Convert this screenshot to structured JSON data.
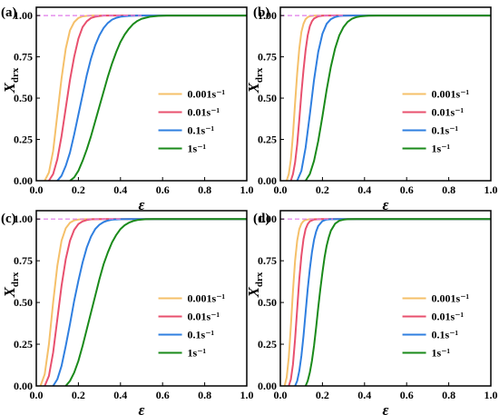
{
  "chart_data": [
    {
      "type": "line",
      "panel_label": "(a)",
      "xlabel": "ε",
      "ylabel": "X",
      "ylabel_subscript": "drx",
      "xlim": [
        0,
        1.0
      ],
      "ylim": [
        0,
        1.05
      ],
      "x_ticks": [
        "0.0",
        "0.2",
        "0.4",
        "0.6",
        "0.8",
        "1.0"
      ],
      "y_ticks": [
        "0.00",
        "0.25",
        "0.50",
        "0.75",
        "1.00"
      ],
      "reference_line": {
        "y": 1.0,
        "x_range": [
          0,
          0.5
        ],
        "style": "dashed",
        "color": "#e07ae8"
      },
      "legend_position": "center-right",
      "series": [
        {
          "name": "0.001s⁻¹",
          "color": "#f5c06a",
          "x": [
            0.04,
            0.06,
            0.08,
            0.1,
            0.12,
            0.14,
            0.16,
            0.18,
            0.2,
            0.22,
            0.24,
            0.26,
            0.28,
            0.3,
            1.0
          ],
          "values": [
            0.0,
            0.05,
            0.18,
            0.4,
            0.62,
            0.8,
            0.91,
            0.96,
            0.985,
            0.995,
            0.998,
            1.0,
            1.0,
            1.0,
            1.0
          ]
        },
        {
          "name": "0.01s⁻¹",
          "color": "#e8506e",
          "x": [
            0.06,
            0.08,
            0.1,
            0.12,
            0.14,
            0.16,
            0.18,
            0.2,
            0.22,
            0.24,
            0.26,
            0.28,
            0.3,
            0.32,
            0.36,
            1.0
          ],
          "values": [
            0.0,
            0.04,
            0.13,
            0.27,
            0.44,
            0.61,
            0.75,
            0.86,
            0.93,
            0.965,
            0.985,
            0.993,
            0.997,
            1.0,
            1.0,
            1.0
          ]
        },
        {
          "name": "0.1s⁻¹",
          "color": "#2f7fe0",
          "x": [
            0.1,
            0.12,
            0.14,
            0.16,
            0.18,
            0.2,
            0.22,
            0.24,
            0.26,
            0.28,
            0.3,
            0.32,
            0.34,
            0.36,
            0.38,
            0.4,
            0.44,
            0.48,
            1.0
          ],
          "values": [
            0.0,
            0.03,
            0.09,
            0.17,
            0.28,
            0.4,
            0.52,
            0.64,
            0.74,
            0.82,
            0.88,
            0.925,
            0.955,
            0.975,
            0.986,
            0.993,
            0.998,
            1.0,
            1.0
          ]
        },
        {
          "name": "1s⁻¹",
          "color": "#1a8a1a",
          "x": [
            0.16,
            0.18,
            0.2,
            0.22,
            0.24,
            0.26,
            0.28,
            0.3,
            0.32,
            0.34,
            0.36,
            0.38,
            0.4,
            0.42,
            0.44,
            0.46,
            0.48,
            0.5,
            0.54,
            0.58,
            0.62,
            1.0
          ],
          "values": [
            0.0,
            0.02,
            0.06,
            0.12,
            0.19,
            0.27,
            0.36,
            0.45,
            0.54,
            0.63,
            0.71,
            0.78,
            0.84,
            0.885,
            0.92,
            0.948,
            0.967,
            0.98,
            0.993,
            0.998,
            1.0,
            1.0
          ]
        }
      ]
    },
    {
      "type": "line",
      "panel_label": "(b)",
      "xlabel": "ε",
      "ylabel": "X",
      "ylabel_subscript": "drx",
      "xlim": [
        0,
        1.0
      ],
      "ylim": [
        0,
        1.05
      ],
      "x_ticks": [
        "0.0",
        "0.2",
        "0.4",
        "0.6",
        "0.8",
        "1.0"
      ],
      "y_ticks": [
        "0.00",
        "0.25",
        "0.50",
        "0.75",
        "1.00"
      ],
      "reference_line": {
        "y": 1.0,
        "x_range": [
          0,
          0.3
        ],
        "style": "dashed",
        "color": "#e07ae8"
      },
      "legend_position": "center-right",
      "series": [
        {
          "name": "0.001s⁻¹",
          "color": "#f5c06a",
          "x": [
            0.03,
            0.04,
            0.05,
            0.06,
            0.07,
            0.08,
            0.09,
            0.1,
            0.11,
            0.12,
            0.13,
            0.14,
            0.16,
            0.18,
            1.0
          ],
          "values": [
            0.0,
            0.04,
            0.13,
            0.28,
            0.47,
            0.65,
            0.8,
            0.9,
            0.95,
            0.978,
            0.99,
            0.996,
            0.999,
            1.0,
            1.0
          ]
        },
        {
          "name": "0.01s⁻¹",
          "color": "#e8506e",
          "x": [
            0.05,
            0.06,
            0.07,
            0.08,
            0.09,
            0.1,
            0.11,
            0.12,
            0.13,
            0.14,
            0.15,
            0.16,
            0.18,
            0.2,
            0.22,
            1.0
          ],
          "values": [
            0.0,
            0.04,
            0.11,
            0.22,
            0.37,
            0.53,
            0.67,
            0.79,
            0.88,
            0.935,
            0.965,
            0.982,
            0.995,
            0.999,
            1.0,
            1.0
          ]
        },
        {
          "name": "0.1s⁻¹",
          "color": "#2f7fe0",
          "x": [
            0.08,
            0.1,
            0.12,
            0.14,
            0.16,
            0.18,
            0.2,
            0.22,
            0.24,
            0.26,
            0.28,
            0.3,
            0.34,
            1.0
          ],
          "values": [
            0.0,
            0.06,
            0.2,
            0.4,
            0.61,
            0.78,
            0.89,
            0.95,
            0.978,
            0.991,
            0.997,
            0.999,
            1.0,
            1.0
          ]
        },
        {
          "name": "1s⁻¹",
          "color": "#1a8a1a",
          "x": [
            0.12,
            0.14,
            0.16,
            0.18,
            0.2,
            0.22,
            0.24,
            0.26,
            0.28,
            0.3,
            0.32,
            0.34,
            0.36,
            0.38,
            0.42,
            0.46,
            1.0
          ],
          "values": [
            0.0,
            0.04,
            0.12,
            0.24,
            0.39,
            0.55,
            0.69,
            0.8,
            0.88,
            0.93,
            0.962,
            0.98,
            0.99,
            0.995,
            0.999,
            1.0,
            1.0
          ]
        }
      ]
    },
    {
      "type": "line",
      "panel_label": "(c)",
      "xlabel": "ε",
      "ylabel": "X",
      "ylabel_subscript": "drx",
      "xlim": [
        0,
        1.0
      ],
      "ylim": [
        0,
        1.05
      ],
      "x_ticks": [
        "0.0",
        "0.2",
        "0.4",
        "0.6",
        "0.8",
        "1.0"
      ],
      "y_ticks": [
        "0.00",
        "0.25",
        "0.50",
        "0.75",
        "1.00"
      ],
      "reference_line": {
        "y": 1.0,
        "x_range": [
          0,
          0.4
        ],
        "style": "dashed",
        "color": "#e07ae8"
      },
      "legend_position": "center-right",
      "series": [
        {
          "name": "0.001s⁻¹",
          "color": "#f5c06a",
          "x": [
            0.02,
            0.04,
            0.06,
            0.08,
            0.1,
            0.12,
            0.14,
            0.16,
            0.18,
            0.2,
            0.22,
            0.24,
            1.0
          ],
          "values": [
            0.0,
            0.07,
            0.25,
            0.5,
            0.72,
            0.87,
            0.945,
            0.978,
            0.992,
            0.997,
            0.999,
            1.0,
            1.0
          ]
        },
        {
          "name": "0.01s⁻¹",
          "color": "#e8506e",
          "x": [
            0.04,
            0.06,
            0.08,
            0.1,
            0.12,
            0.14,
            0.16,
            0.18,
            0.2,
            0.22,
            0.24,
            0.26,
            0.28,
            0.32,
            1.0
          ],
          "values": [
            0.0,
            0.06,
            0.2,
            0.4,
            0.6,
            0.76,
            0.87,
            0.935,
            0.97,
            0.986,
            0.994,
            0.998,
            0.999,
            1.0,
            1.0
          ]
        },
        {
          "name": "0.1s⁻¹",
          "color": "#2f7fe0",
          "x": [
            0.08,
            0.1,
            0.12,
            0.14,
            0.16,
            0.18,
            0.2,
            0.22,
            0.24,
            0.26,
            0.28,
            0.3,
            0.32,
            0.34,
            0.36,
            0.4,
            0.44,
            1.0
          ],
          "values": [
            0.0,
            0.04,
            0.12,
            0.24,
            0.37,
            0.51,
            0.63,
            0.74,
            0.83,
            0.895,
            0.94,
            0.966,
            0.982,
            0.991,
            0.996,
            0.999,
            1.0,
            1.0
          ]
        },
        {
          "name": "1s⁻¹",
          "color": "#1a8a1a",
          "x": [
            0.14,
            0.16,
            0.18,
            0.2,
            0.22,
            0.24,
            0.26,
            0.28,
            0.3,
            0.32,
            0.34,
            0.36,
            0.38,
            0.4,
            0.42,
            0.44,
            0.46,
            0.48,
            0.52,
            0.56,
            1.0
          ],
          "values": [
            0.0,
            0.03,
            0.08,
            0.15,
            0.24,
            0.34,
            0.44,
            0.54,
            0.64,
            0.73,
            0.8,
            0.86,
            0.905,
            0.94,
            0.963,
            0.978,
            0.988,
            0.994,
            0.999,
            1.0,
            1.0
          ]
        }
      ]
    },
    {
      "type": "line",
      "panel_label": "(d)",
      "xlabel": "ε",
      "ylabel": "X",
      "ylabel_subscript": "drx",
      "xlim": [
        0,
        1.0
      ],
      "ylim": [
        0,
        1.05
      ],
      "x_ticks": [
        "0.0",
        "0.2",
        "0.4",
        "0.6",
        "0.8",
        "1.0"
      ],
      "y_ticks": [
        "0.00",
        "0.25",
        "0.50",
        "0.75",
        "1.00"
      ],
      "reference_line": {
        "y": 1.0,
        "x_range": [
          0,
          0.25
        ],
        "style": "dashed",
        "color": "#e07ae8"
      },
      "legend_position": "center-right",
      "series": [
        {
          "name": "0.001s⁻¹",
          "color": "#f5c06a",
          "x": [
            0.02,
            0.03,
            0.04,
            0.05,
            0.06,
            0.07,
            0.08,
            0.09,
            0.1,
            0.11,
            0.12,
            0.14,
            0.16,
            1.0
          ],
          "values": [
            0.0,
            0.05,
            0.17,
            0.36,
            0.57,
            0.75,
            0.87,
            0.94,
            0.972,
            0.988,
            0.995,
            0.999,
            1.0,
            1.0
          ]
        },
        {
          "name": "0.01s⁻¹",
          "color": "#e8506e",
          "x": [
            0.04,
            0.05,
            0.06,
            0.07,
            0.08,
            0.09,
            0.1,
            0.11,
            0.12,
            0.13,
            0.14,
            0.16,
            0.18,
            0.2,
            1.0
          ],
          "values": [
            0.0,
            0.04,
            0.13,
            0.28,
            0.46,
            0.64,
            0.78,
            0.88,
            0.94,
            0.97,
            0.986,
            0.997,
            0.999,
            1.0,
            1.0
          ]
        },
        {
          "name": "0.1s⁻¹",
          "color": "#2f7fe0",
          "x": [
            0.07,
            0.08,
            0.09,
            0.1,
            0.11,
            0.12,
            0.13,
            0.14,
            0.15,
            0.16,
            0.17,
            0.18,
            0.2,
            0.22,
            0.24,
            0.28,
            1.0
          ],
          "values": [
            0.0,
            0.03,
            0.09,
            0.18,
            0.3,
            0.44,
            0.58,
            0.7,
            0.8,
            0.875,
            0.925,
            0.958,
            0.988,
            0.997,
            0.999,
            1.0,
            1.0
          ]
        },
        {
          "name": "1s⁻¹",
          "color": "#1a8a1a",
          "x": [
            0.12,
            0.13,
            0.14,
            0.15,
            0.16,
            0.17,
            0.18,
            0.19,
            0.2,
            0.21,
            0.22,
            0.23,
            0.24,
            0.26,
            0.28,
            0.3,
            0.32,
            0.36,
            0.4,
            1.0
          ],
          "values": [
            0.0,
            0.03,
            0.08,
            0.15,
            0.24,
            0.35,
            0.47,
            0.58,
            0.68,
            0.77,
            0.84,
            0.89,
            0.93,
            0.972,
            0.99,
            0.996,
            0.999,
            1.0,
            1.0,
            1.0
          ]
        }
      ]
    }
  ]
}
